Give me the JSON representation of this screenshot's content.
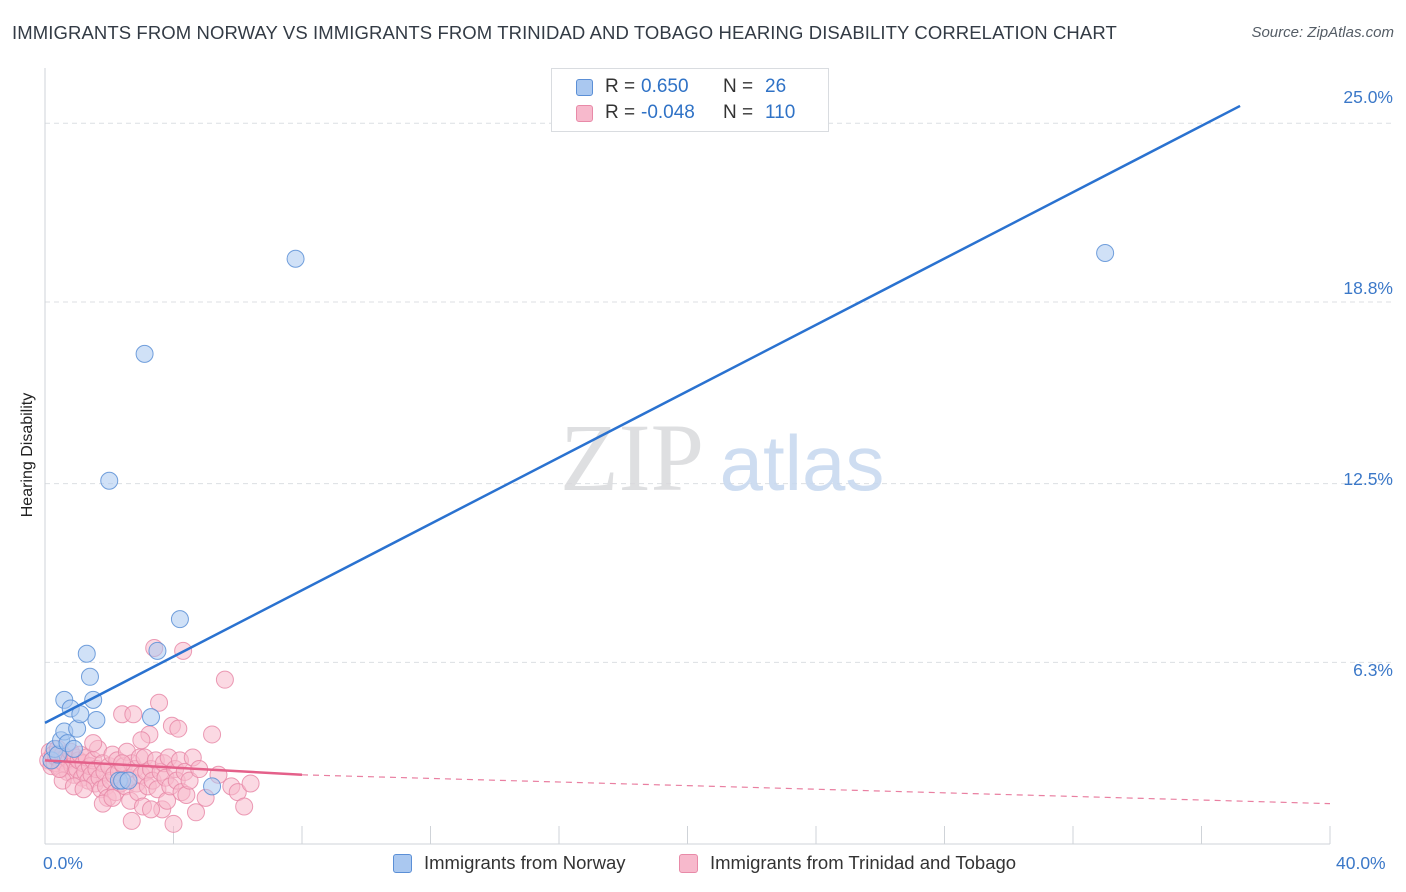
{
  "title": "IMMIGRANTS FROM NORWAY VS IMMIGRANTS FROM TRINIDAD AND TOBAGO HEARING DISABILITY CORRELATION CHART",
  "source": "Source: ZipAtlas.com",
  "watermark": {
    "zip": "ZIP",
    "atlas": "atlas"
  },
  "legend": {
    "rows": [
      {
        "r_label": "R =",
        "r_value": "0.650",
        "n_label": "N =",
        "n_value": "26"
      },
      {
        "r_label": "R =",
        "r_value": "-0.048",
        "n_label": "N =",
        "n_value": "110"
      }
    ]
  },
  "bottom_legend": [
    "Immigrants from Norway",
    "Immigrants from Trinidad and Tobago"
  ],
  "colors": {
    "norway_fill": "#aac8f0",
    "norway_stroke": "#5b8fd6",
    "norway_line": "#2a72d0",
    "tt_fill": "#f7b9cc",
    "tt_stroke": "#e88aa8",
    "tt_line": "#e4608a",
    "axis_text": "#3b78c8",
    "grid": "#dcdfe3"
  },
  "chart_data": {
    "type": "scatter",
    "title": "IMMIGRANTS FROM NORWAY VS IMMIGRANTS FROM TRINIDAD AND TOBAGO HEARING DISABILITY CORRELATION CHART",
    "xlabel": "",
    "ylabel": "Hearing Disability",
    "xlim": [
      0,
      40
    ],
    "ylim": [
      0,
      26.5
    ],
    "x_tick_labels": [
      "0.0%",
      "40.0%"
    ],
    "y_ticks": [
      6.3,
      12.5,
      18.8,
      25.0
    ],
    "y_tick_labels": [
      "6.3%",
      "12.5%",
      "18.8%",
      "25.0%"
    ],
    "grid": "horizontal dashed",
    "legend_placement": "top-center",
    "series": [
      {
        "name": "Immigrants from Norway",
        "points": [
          [
            0.2,
            2.9
          ],
          [
            0.3,
            3.3
          ],
          [
            0.4,
            3.1
          ],
          [
            0.5,
            3.6
          ],
          [
            0.6,
            3.9
          ],
          [
            0.6,
            5.0
          ],
          [
            0.7,
            3.5
          ],
          [
            0.8,
            4.7
          ],
          [
            0.9,
            3.3
          ],
          [
            1.0,
            4.0
          ],
          [
            1.1,
            4.5
          ],
          [
            1.3,
            6.6
          ],
          [
            1.4,
            5.8
          ],
          [
            1.5,
            5.0
          ],
          [
            1.6,
            4.3
          ],
          [
            2.0,
            12.6
          ],
          [
            2.3,
            2.2
          ],
          [
            2.4,
            2.2
          ],
          [
            2.6,
            2.2
          ],
          [
            3.1,
            17.0
          ],
          [
            3.3,
            4.4
          ],
          [
            3.5,
            6.7
          ],
          [
            4.2,
            7.8
          ],
          [
            5.2,
            2.0
          ],
          [
            7.8,
            20.3
          ],
          [
            33.0,
            20.5
          ]
        ],
        "trend": {
          "x": [
            0,
            37.2
          ],
          "y": [
            4.2,
            25.6
          ]
        }
      },
      {
        "name": "Immigrants from Trinidad and Tobago",
        "points": [
          [
            0.1,
            2.9
          ],
          [
            0.15,
            3.2
          ],
          [
            0.2,
            2.7
          ],
          [
            0.25,
            3.1
          ],
          [
            0.3,
            2.8
          ],
          [
            0.35,
            3.0
          ],
          [
            0.4,
            3.3
          ],
          [
            0.45,
            2.9
          ],
          [
            0.5,
            2.6
          ],
          [
            0.55,
            3.1
          ],
          [
            0.6,
            2.8
          ],
          [
            0.65,
            3.0
          ],
          [
            0.7,
            2.5
          ],
          [
            0.75,
            2.9
          ],
          [
            0.8,
            3.2
          ],
          [
            0.85,
            2.7
          ],
          [
            0.9,
            2.4
          ],
          [
            0.95,
            3.0
          ],
          [
            1.0,
            2.6
          ],
          [
            1.05,
            2.9
          ],
          [
            1.1,
            3.1
          ],
          [
            1.15,
            2.3
          ],
          [
            1.2,
            2.8
          ],
          [
            1.25,
            2.5
          ],
          [
            1.3,
            3.0
          ],
          [
            1.35,
            2.2
          ],
          [
            1.4,
            2.7
          ],
          [
            1.45,
            2.4
          ],
          [
            1.5,
            2.9
          ],
          [
            1.55,
            2.1
          ],
          [
            1.6,
            2.6
          ],
          [
            1.65,
            3.3
          ],
          [
            1.7,
            2.3
          ],
          [
            1.75,
            1.9
          ],
          [
            1.8,
            2.8
          ],
          [
            1.85,
            2.5
          ],
          [
            1.9,
            2.0
          ],
          [
            1.95,
            1.6
          ],
          [
            2.0,
            2.7
          ],
          [
            2.05,
            2.2
          ],
          [
            2.1,
            3.1
          ],
          [
            2.15,
            2.4
          ],
          [
            2.2,
            1.8
          ],
          [
            2.25,
            2.9
          ],
          [
            2.3,
            2.5
          ],
          [
            2.35,
            2.1
          ],
          [
            2.4,
            4.5
          ],
          [
            2.45,
            2.7
          ],
          [
            2.5,
            2.0
          ],
          [
            2.55,
            3.2
          ],
          [
            2.6,
            2.3
          ],
          [
            2.65,
            1.5
          ],
          [
            2.7,
            2.8
          ],
          [
            2.75,
            4.5
          ],
          [
            2.8,
            2.6
          ],
          [
            2.85,
            2.1
          ],
          [
            2.9,
            1.8
          ],
          [
            2.95,
            3.0
          ],
          [
            3.0,
            2.4
          ],
          [
            3.05,
            1.3
          ],
          [
            3.1,
            3.0
          ],
          [
            3.15,
            2.5
          ],
          [
            3.2,
            2.0
          ],
          [
            3.25,
            3.8
          ],
          [
            3.3,
            2.6
          ],
          [
            3.35,
            2.2
          ],
          [
            3.4,
            6.8
          ],
          [
            3.45,
            2.9
          ],
          [
            3.5,
            1.9
          ],
          [
            3.55,
            4.9
          ],
          [
            3.6,
            2.5
          ],
          [
            3.65,
            1.2
          ],
          [
            3.7,
            2.8
          ],
          [
            3.75,
            2.3
          ],
          [
            3.8,
            1.5
          ],
          [
            3.85,
            3.0
          ],
          [
            3.9,
            2.0
          ],
          [
            3.95,
            4.1
          ],
          [
            4.0,
            0.7
          ],
          [
            4.05,
            2.6
          ],
          [
            4.1,
            2.2
          ],
          [
            4.15,
            4.0
          ],
          [
            4.2,
            2.9
          ],
          [
            4.25,
            1.8
          ],
          [
            4.3,
            6.7
          ],
          [
            4.35,
            2.5
          ],
          [
            4.4,
            1.7
          ],
          [
            4.5,
            2.2
          ],
          [
            4.6,
            3.0
          ],
          [
            4.7,
            1.1
          ],
          [
            4.8,
            2.6
          ],
          [
            5.0,
            1.6
          ],
          [
            5.2,
            3.8
          ],
          [
            5.4,
            2.4
          ],
          [
            5.6,
            5.7
          ],
          [
            5.8,
            2.0
          ],
          [
            6.0,
            1.8
          ],
          [
            6.2,
            1.3
          ],
          [
            0.55,
            2.2
          ],
          [
            0.9,
            2.0
          ],
          [
            1.2,
            1.9
          ],
          [
            1.5,
            3.5
          ],
          [
            1.8,
            1.4
          ],
          [
            2.1,
            1.6
          ],
          [
            2.4,
            2.8
          ],
          [
            2.7,
            0.8
          ],
          [
            3.0,
            3.6
          ],
          [
            3.3,
            1.2
          ],
          [
            6.4,
            2.1
          ],
          [
            0.45,
            2.6
          ]
        ],
        "trend_solid": {
          "x": [
            0,
            8.0
          ],
          "y": [
            2.9,
            2.4
          ]
        },
        "trend_dashed": {
          "x": [
            8.0,
            40.0
          ],
          "y": [
            2.4,
            1.4
          ]
        }
      }
    ]
  }
}
